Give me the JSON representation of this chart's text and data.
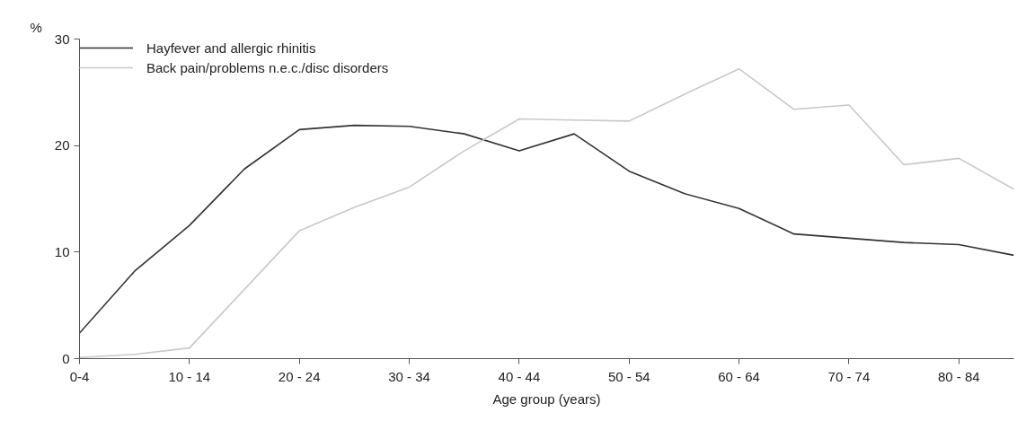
{
  "chart_data": {
    "type": "line",
    "xlabel": "Age group (years)",
    "ylabel": "%",
    "categories": [
      "0-4",
      null,
      "10 - 14",
      null,
      "20 - 24",
      null,
      "30 - 34",
      null,
      "40 - 44",
      null,
      "50 - 54",
      null,
      "60 - 64",
      null,
      "70 - 74",
      null,
      "80 - 84",
      null
    ],
    "series": [
      {
        "name": "Hayfever and allergic rhinitis",
        "color": "#333333",
        "values": [
          2.4,
          8.2,
          12.5,
          17.8,
          21.5,
          21.9,
          21.8,
          21.1,
          19.5,
          21.1,
          17.6,
          15.5,
          14.1,
          11.7,
          11.3,
          10.9,
          10.7,
          9.7
        ]
      },
      {
        "name": "Back pain/problems n.e.c./disc disorders",
        "color": "#c8c8c8",
        "values": [
          0.1,
          0.4,
          1.0,
          6.5,
          12.0,
          14.2,
          16.1,
          19.5,
          22.5,
          22.4,
          22.3,
          24.8,
          27.2,
          23.4,
          23.8,
          18.2,
          18.8,
          15.9
        ]
      }
    ],
    "ylim": [
      0,
      30
    ],
    "yticks": [
      0,
      10,
      20,
      30
    ],
    "grid": false,
    "legend": "top left",
    "marker": "none",
    "line_style": "solid"
  }
}
